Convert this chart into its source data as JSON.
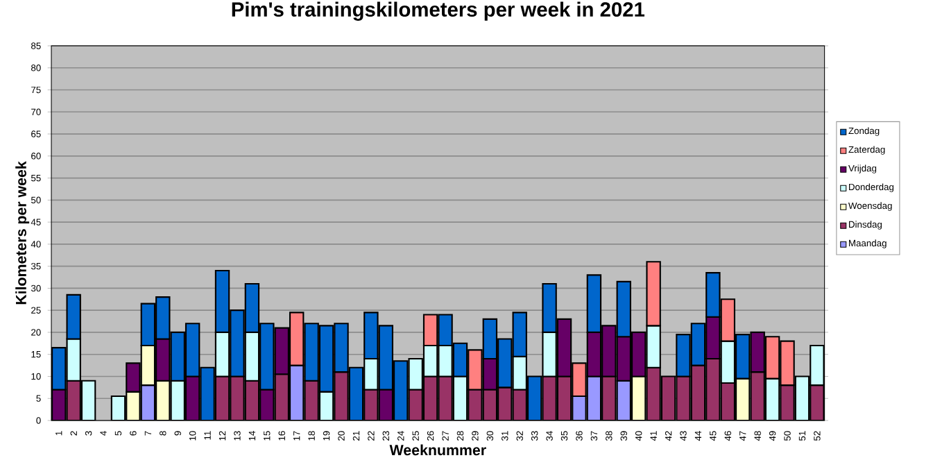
{
  "chart_data": {
    "type": "bar",
    "stacked": true,
    "title": "Pim's trainingskilometers per week in 2021",
    "xlabel": "Weeknummer",
    "ylabel": "Kilometers per week",
    "categories": [
      "1",
      "2",
      "3",
      "4",
      "5",
      "6",
      "7",
      "8",
      "9",
      "10",
      "11",
      "12",
      "13",
      "14",
      "15",
      "16",
      "17",
      "18",
      "19",
      "20",
      "21",
      "22",
      "23",
      "24",
      "25",
      "26",
      "27",
      "28",
      "29",
      "30",
      "31",
      "32",
      "33",
      "34",
      "35",
      "36",
      "37",
      "38",
      "39",
      "40",
      "41",
      "42",
      "43",
      "44",
      "45",
      "46",
      "47",
      "48",
      "49",
      "50",
      "51",
      "52"
    ],
    "ylim": [
      0,
      85
    ],
    "yticks": [
      0,
      5,
      10,
      15,
      20,
      25,
      30,
      35,
      40,
      45,
      50,
      55,
      60,
      65,
      70,
      75,
      80,
      85
    ],
    "grid": "y",
    "legend": "right",
    "series": [
      {
        "name": "Maandag",
        "color": "#9999ff",
        "values": [
          null,
          null,
          null,
          null,
          null,
          null,
          8,
          null,
          null,
          null,
          null,
          null,
          null,
          null,
          null,
          null,
          12.5,
          null,
          null,
          null,
          null,
          null,
          null,
          null,
          null,
          null,
          null,
          null,
          null,
          null,
          null,
          null,
          null,
          null,
          null,
          5.5,
          10,
          null,
          9,
          null,
          null,
          null,
          null,
          null,
          null,
          null,
          null,
          null,
          null,
          null,
          null,
          null
        ]
      },
      {
        "name": "Dinsdag",
        "color": "#993366",
        "values": [
          null,
          9,
          null,
          null,
          null,
          null,
          null,
          null,
          null,
          null,
          null,
          10,
          10,
          9,
          null,
          10.5,
          null,
          9,
          null,
          11,
          null,
          7,
          null,
          null,
          7,
          10,
          10,
          null,
          7,
          7,
          7.5,
          7,
          null,
          10,
          10,
          null,
          null,
          10,
          null,
          null,
          12,
          10,
          10,
          12.5,
          14,
          8.5,
          null,
          11,
          null,
          8,
          null,
          8
        ]
      },
      {
        "name": "Woensdag",
        "color": "#ffffcc",
        "values": [
          null,
          null,
          null,
          null,
          null,
          6.5,
          9,
          9,
          null,
          null,
          null,
          null,
          null,
          null,
          null,
          null,
          null,
          null,
          null,
          null,
          null,
          null,
          null,
          null,
          null,
          null,
          null,
          null,
          null,
          null,
          null,
          null,
          null,
          null,
          null,
          null,
          null,
          null,
          null,
          10,
          null,
          null,
          null,
          null,
          null,
          null,
          9.5,
          null,
          null,
          null,
          null,
          null
        ]
      },
      {
        "name": "Donderdag",
        "color": "#ccffff",
        "values": [
          null,
          9.5,
          9,
          null,
          5.5,
          null,
          null,
          null,
          9,
          null,
          null,
          10,
          null,
          11,
          null,
          null,
          null,
          null,
          6.5,
          null,
          null,
          7,
          null,
          null,
          7,
          7,
          7,
          10,
          null,
          null,
          null,
          7.5,
          null,
          10,
          null,
          null,
          null,
          null,
          null,
          null,
          9.5,
          null,
          null,
          null,
          null,
          9.5,
          null,
          null,
          9.5,
          null,
          10,
          9
        ]
      },
      {
        "name": "Vrijdag",
        "color": "#660066",
        "values": [
          7,
          null,
          null,
          null,
          null,
          6.5,
          null,
          9.5,
          null,
          10,
          null,
          null,
          null,
          null,
          7,
          10.5,
          null,
          null,
          null,
          null,
          null,
          null,
          7,
          null,
          null,
          null,
          null,
          null,
          null,
          7,
          null,
          null,
          null,
          null,
          13,
          null,
          10,
          11.5,
          10,
          10,
          null,
          null,
          null,
          null,
          9.5,
          null,
          null,
          9,
          null,
          null,
          null,
          null
        ]
      },
      {
        "name": "Zaterdag",
        "color": "#ff8080",
        "values": [
          null,
          null,
          null,
          null,
          null,
          null,
          null,
          null,
          null,
          null,
          null,
          null,
          null,
          null,
          null,
          null,
          12,
          null,
          null,
          null,
          null,
          null,
          null,
          null,
          null,
          7,
          null,
          null,
          9,
          null,
          null,
          null,
          null,
          null,
          null,
          7.5,
          null,
          null,
          null,
          null,
          14.5,
          null,
          null,
          null,
          null,
          9.5,
          null,
          null,
          9.5,
          10,
          null,
          null
        ]
      },
      {
        "name": "Zondag",
        "color": "#0066cc",
        "values": [
          9.5,
          10,
          null,
          null,
          null,
          null,
          9.5,
          9.5,
          11,
          12,
          12,
          14,
          15,
          11,
          15,
          null,
          null,
          13,
          15,
          11,
          12,
          10.5,
          14.5,
          13.5,
          null,
          null,
          7,
          7.5,
          null,
          9,
          11,
          10,
          10,
          11,
          null,
          null,
          13,
          null,
          12.5,
          null,
          null,
          null,
          9.5,
          9.5,
          10,
          null,
          10,
          null,
          null,
          null,
          null,
          null
        ]
      }
    ]
  }
}
